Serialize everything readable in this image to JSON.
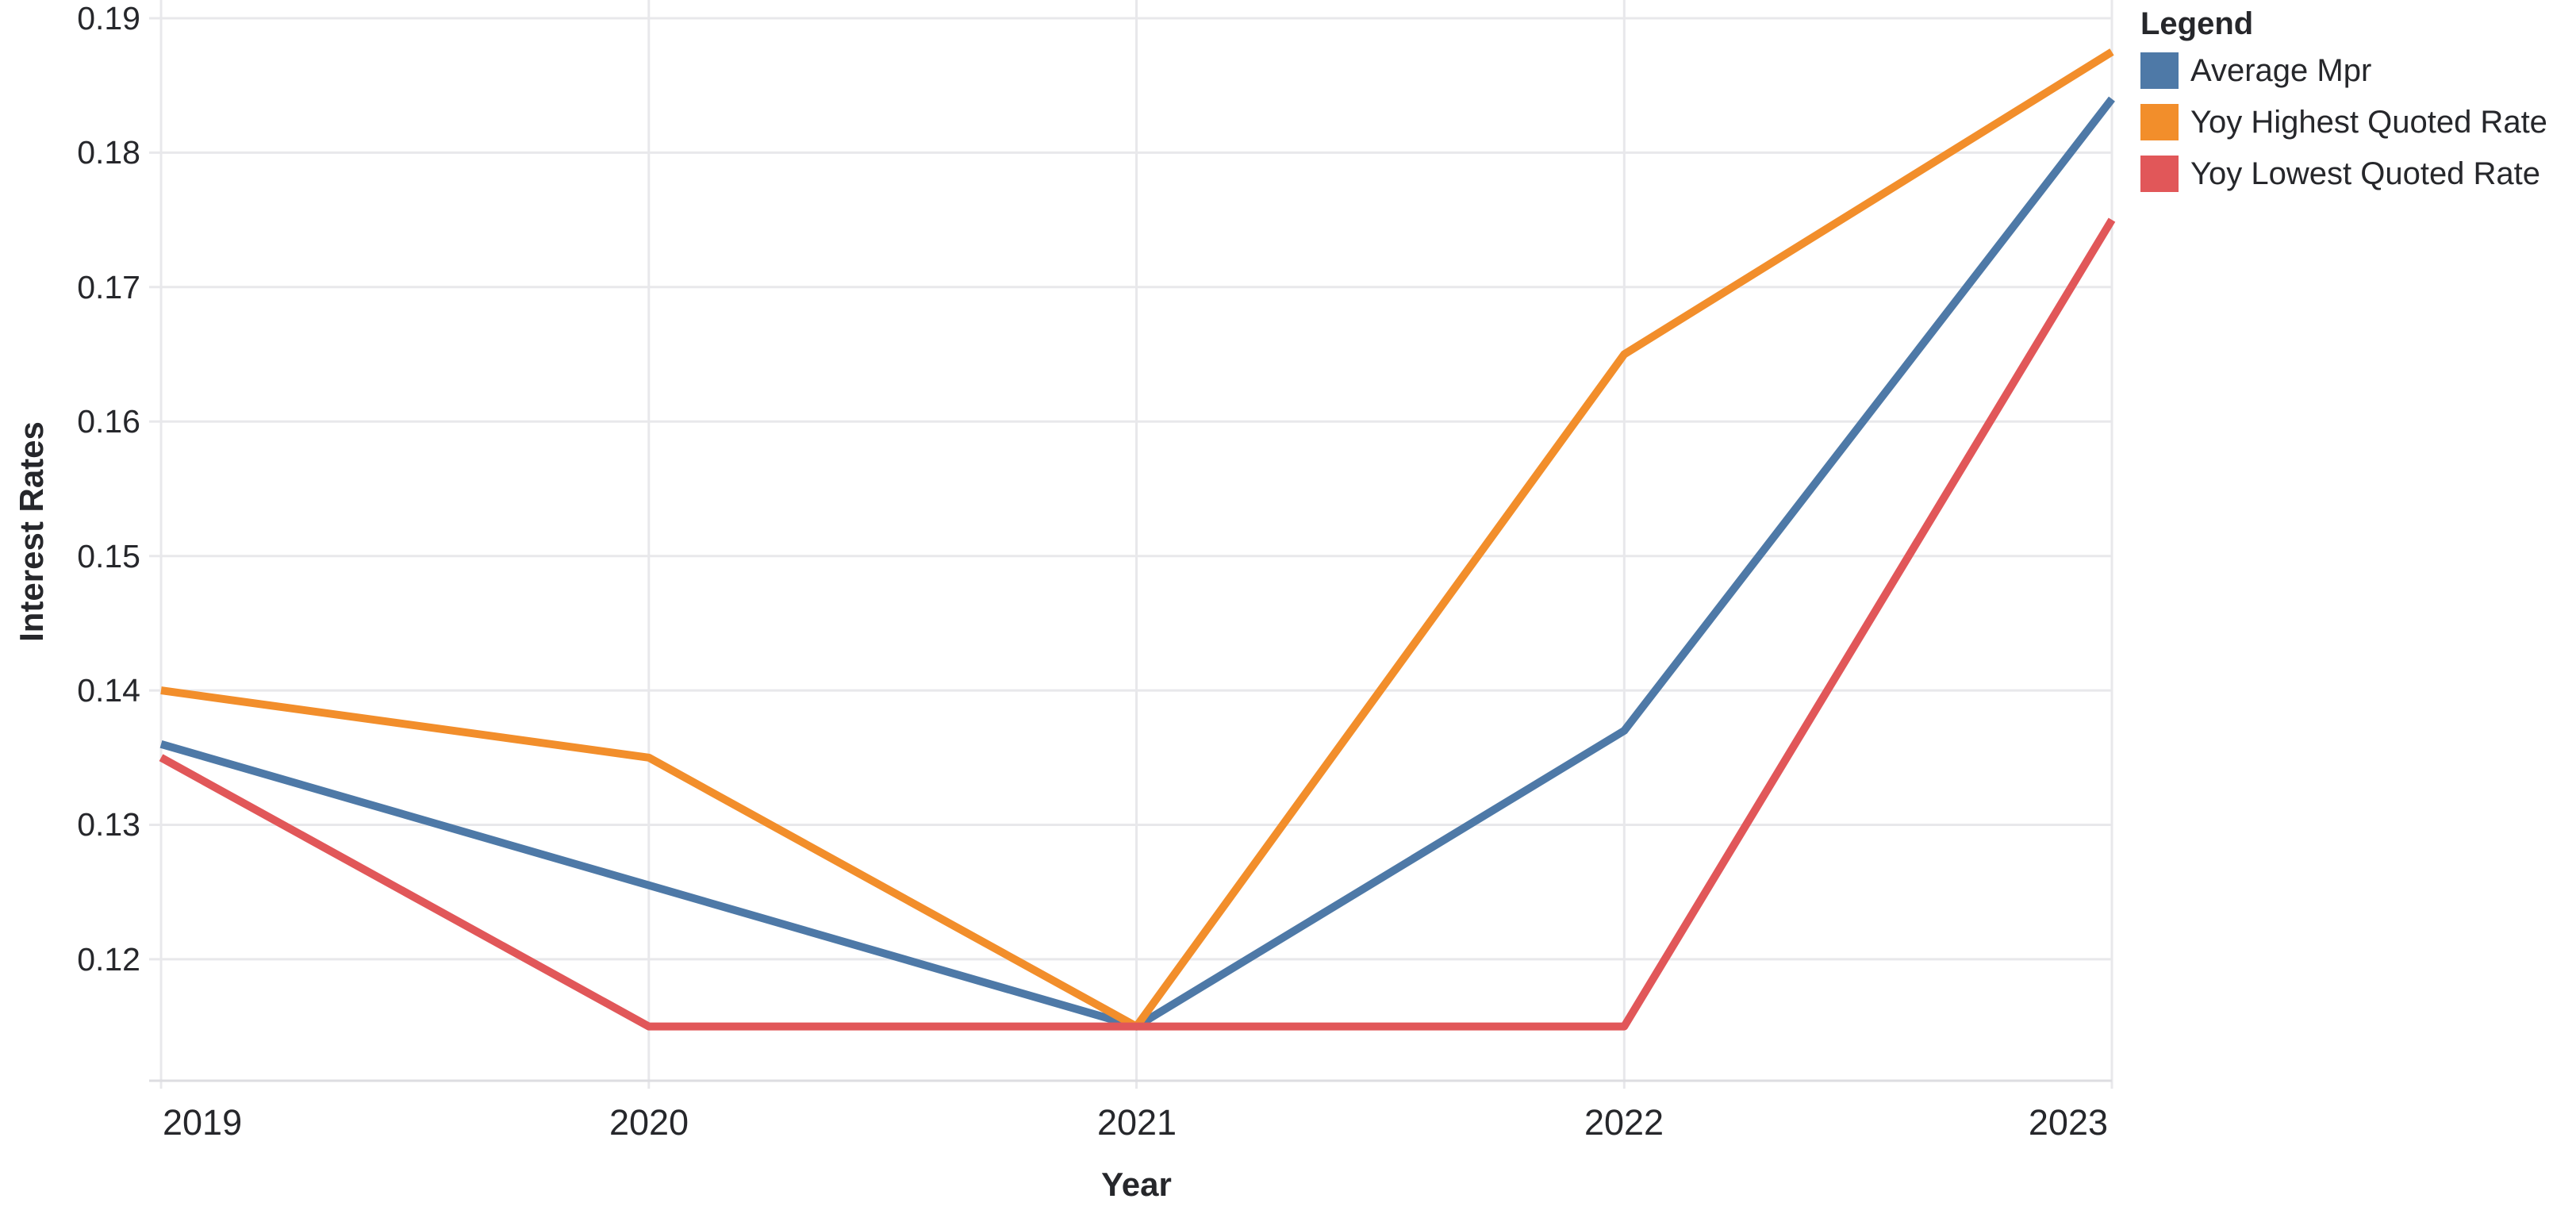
{
  "chart_data": {
    "type": "line",
    "title": "",
    "xlabel": "Year",
    "ylabel": "Interest Rates",
    "legend_title": "Legend",
    "legend_position": "top-right-outside",
    "grid": true,
    "x": [
      2019,
      2020,
      2021,
      2022,
      2023
    ],
    "x_tick_labels": [
      "2019",
      "2020",
      "2021",
      "2022",
      "2023"
    ],
    "y_ticks": [
      0.12,
      0.13,
      0.14,
      0.15,
      0.16,
      0.17,
      0.18,
      0.19
    ],
    "y_tick_labels": [
      "0.12",
      "0.13",
      "0.14",
      "0.15",
      "0.16",
      "0.17",
      "0.18",
      "0.19"
    ],
    "ylim": [
      0.11096,
      0.19136
    ],
    "xlim": [
      2019,
      2023
    ],
    "series": [
      {
        "name": "Average Mpr",
        "color": "#4e79a7",
        "values": [
          0.136,
          0.1255,
          0.115,
          0.137,
          0.184
        ]
      },
      {
        "name": "Yoy Highest Quoted Rate",
        "color": "#f28e2b",
        "values": [
          0.14,
          0.135,
          0.115,
          0.165,
          0.1875
        ]
      },
      {
        "name": "Yoy Lowest Quoted Rate",
        "color": "#e15759",
        "values": [
          0.135,
          0.115,
          0.115,
          0.115,
          0.175
        ]
      }
    ],
    "colors": {
      "text": "#26272b",
      "gridline": "#e8e8eb",
      "axis_line": "#dddde1",
      "background": "#ffffff"
    }
  }
}
